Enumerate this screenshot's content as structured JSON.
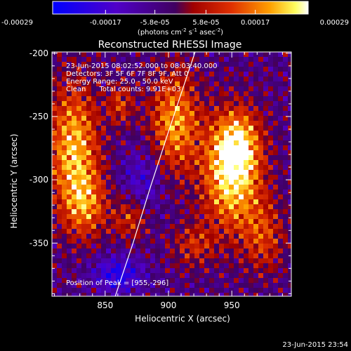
{
  "chart_data": {
    "type": "heatmap",
    "title": "Reconstructed RHESSI Image",
    "xlabel": "Heliocentric X (arcsec)",
    "ylabel": "Heliocentric Y (arcsec)",
    "xlim": [
      808,
      997
    ],
    "ylim": [
      -392,
      -199
    ],
    "x_ticks": [
      850,
      900,
      950
    ],
    "y_ticks": [
      -200,
      -250,
      -300,
      -350
    ],
    "colorbar": {
      "ticks": [
        -0.00029,
        -0.00017,
        -5.8e-05,
        5.8e-05,
        0.00017,
        0.00029
      ],
      "tick_labels": [
        "-0.00029",
        "-0.00017",
        "-5.8e-05",
        "5.8e-05",
        "0.00017",
        "0.00029"
      ],
      "range": [
        -0.00029,
        0.00029
      ],
      "colormap": "blue-purple-red-orange-yellow-white"
    },
    "colorbar_unit_text": "(photons cm",
    "colorbar_unit_exp1": "-2",
    "colorbar_unit_mid": " s",
    "colorbar_unit_exp2": "-1",
    "colorbar_unit_end": " asec",
    "colorbar_unit_exp3": "-2",
    "colorbar_unit_close": ")",
    "annotations": [
      "23-Jun-2015 08:02:52.000 to 08:03:40.000",
      "Detectors: 3F 5F 6F 7F 8F 9F, Att 0",
      "Energy Range: 25.0 - 50.0 keV",
      "Clean      Total counts: 9.91E+03"
    ],
    "peak_label": "Position of Peak = [955,-296]",
    "peak": [
      955,
      -296
    ],
    "limb_arc": {
      "x": [
        858,
        872,
        886,
        900,
        914,
        921
      ],
      "y": [
        -392,
        -350,
        -305,
        -262,
        -220,
        -199
      ]
    },
    "sources": [
      {
        "x": 950,
        "y": -296,
        "sx": 16,
        "sy": 30,
        "amp": 1.0
      },
      {
        "x": 955,
        "y": -270,
        "sx": 12,
        "sy": 18,
        "amp": 0.55
      },
      {
        "x": 825,
        "y": -275,
        "sx": 14,
        "sy": 35,
        "amp": 0.85
      },
      {
        "x": 835,
        "y": -320,
        "sx": 12,
        "sy": 18,
        "amp": 0.55
      },
      {
        "x": 905,
        "y": -255,
        "sx": 14,
        "sy": 28,
        "amp": 0.75
      },
      {
        "x": 870,
        "y": -330,
        "sx": 10,
        "sy": 12,
        "amp": 0.45
      },
      {
        "x": 975,
        "y": -345,
        "sx": 12,
        "sy": 20,
        "amp": 0.45
      },
      {
        "x": 920,
        "y": -352,
        "sx": 12,
        "sy": 12,
        "amp": 0.4
      },
      {
        "x": 862,
        "y": -240,
        "sx": 7,
        "sy": 12,
        "amp": 0.45
      },
      {
        "x": 860,
        "y": -375,
        "sx": 14,
        "sy": 10,
        "amp": -0.55
      },
      {
        "x": 880,
        "y": -300,
        "sx": 12,
        "sy": 18,
        "amp": -0.35
      }
    ],
    "grid": false
  },
  "timestamp": "23-Jun-2015 23:54"
}
